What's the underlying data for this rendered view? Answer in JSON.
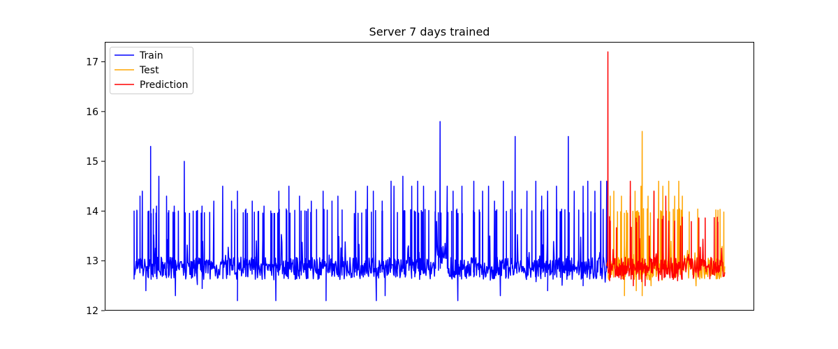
{
  "chart_data": {
    "type": "line",
    "title": "Server 7 days trained",
    "xlabel": "",
    "ylabel": "",
    "ylim": [
      12.0,
      17.4
    ],
    "xlim": [
      0,
      1000
    ],
    "yticks": [
      12,
      13,
      14,
      15,
      16,
      17
    ],
    "xticks": [],
    "grid": false,
    "legend": "top-left",
    "baseline": 12.85,
    "series": [
      {
        "name": "Train",
        "color": "#0000ff",
        "x_range": [
          0,
          800
        ],
        "peaks": [
          [
            0,
            14.0
          ],
          [
            5,
            14.0
          ],
          [
            10,
            14.3
          ],
          [
            14,
            14.4
          ],
          [
            25,
            14.0
          ],
          [
            28,
            15.3
          ],
          [
            38,
            14.1
          ],
          [
            42,
            14.7
          ],
          [
            55,
            14.3
          ],
          [
            68,
            14.1
          ],
          [
            75,
            14.0
          ],
          [
            85,
            15.0
          ],
          [
            100,
            14.0
          ],
          [
            115,
            14.1
          ],
          [
            135,
            14.2
          ],
          [
            150,
            14.5
          ],
          [
            165,
            14.2
          ],
          [
            175,
            14.4
          ],
          [
            200,
            14.2
          ],
          [
            220,
            14.1
          ],
          [
            245,
            14.4
          ],
          [
            262,
            14.5
          ],
          [
            280,
            14.3
          ],
          [
            300,
            14.2
          ],
          [
            320,
            14.4
          ],
          [
            335,
            14.2
          ],
          [
            345,
            14.3
          ],
          [
            375,
            14.4
          ],
          [
            395,
            14.5
          ],
          [
            405,
            14.4
          ],
          [
            420,
            14.2
          ],
          [
            435,
            14.6
          ],
          [
            440,
            14.5
          ],
          [
            455,
            14.7
          ],
          [
            470,
            14.5
          ],
          [
            480,
            14.6
          ],
          [
            490,
            14.5
          ],
          [
            510,
            14.4
          ],
          [
            518,
            15.8
          ],
          [
            530,
            14.5
          ],
          [
            540,
            14.4
          ],
          [
            555,
            14.5
          ],
          [
            575,
            14.6
          ],
          [
            590,
            14.4
          ],
          [
            600,
            14.5
          ],
          [
            610,
            14.2
          ],
          [
            625,
            14.6
          ],
          [
            640,
            14.4
          ],
          [
            645,
            15.5
          ],
          [
            665,
            14.4
          ],
          [
            680,
            14.6
          ],
          [
            690,
            14.3
          ],
          [
            700,
            14.4
          ],
          [
            715,
            14.5
          ],
          [
            735,
            15.5
          ],
          [
            745,
            14.4
          ],
          [
            760,
            14.5
          ],
          [
            768,
            14.6
          ],
          [
            780,
            14.4
          ],
          [
            790,
            14.6
          ],
          [
            800,
            14.6
          ]
        ],
        "dips": [
          [
            20,
            12.4
          ],
          [
            70,
            12.3
          ],
          [
            175,
            12.2
          ],
          [
            240,
            12.2
          ],
          [
            325,
            12.2
          ],
          [
            410,
            12.2
          ],
          [
            425,
            12.3
          ],
          [
            548,
            12.2
          ],
          [
            620,
            12.3
          ],
          [
            700,
            12.4
          ],
          [
            760,
            12.5
          ]
        ]
      },
      {
        "name": "Test",
        "color": "#ffa500",
        "x_range": [
          800,
          1000
        ],
        "peaks": [
          [
            806,
            14.3
          ],
          [
            812,
            14.4
          ],
          [
            825,
            14.3
          ],
          [
            840,
            14.3
          ],
          [
            848,
            14.4
          ],
          [
            858,
            14.5
          ],
          [
            860,
            15.6
          ],
          [
            870,
            14.3
          ],
          [
            880,
            14.4
          ],
          [
            888,
            14.6
          ],
          [
            895,
            14.5
          ],
          [
            905,
            14.6
          ],
          [
            915,
            14.3
          ],
          [
            922,
            14.6
          ],
          [
            928,
            14.3
          ]
        ],
        "dips": [
          [
            830,
            12.3
          ],
          [
            850,
            12.4
          ],
          [
            860,
            12.3
          ],
          [
            875,
            12.5
          ]
        ]
      },
      {
        "name": "Prediction",
        "color": "#ff0000",
        "x_range": [
          800,
          1000
        ],
        "peaks": [
          [
            802,
            17.2
          ],
          [
            806,
            13.8
          ],
          [
            840,
            14.6
          ],
          [
            855,
            13.9
          ],
          [
            872,
            13.5
          ],
          [
            880,
            14.4
          ],
          [
            900,
            14.3
          ],
          [
            905,
            13.8
          ],
          [
            915,
            13.8
          ],
          [
            925,
            13.7
          ]
        ],
        "dips": [
          [
            805,
            12.6
          ],
          [
            845,
            12.5
          ],
          [
            865,
            12.5
          ],
          [
            888,
            12.6
          ],
          [
            920,
            12.6
          ]
        ]
      }
    ]
  }
}
